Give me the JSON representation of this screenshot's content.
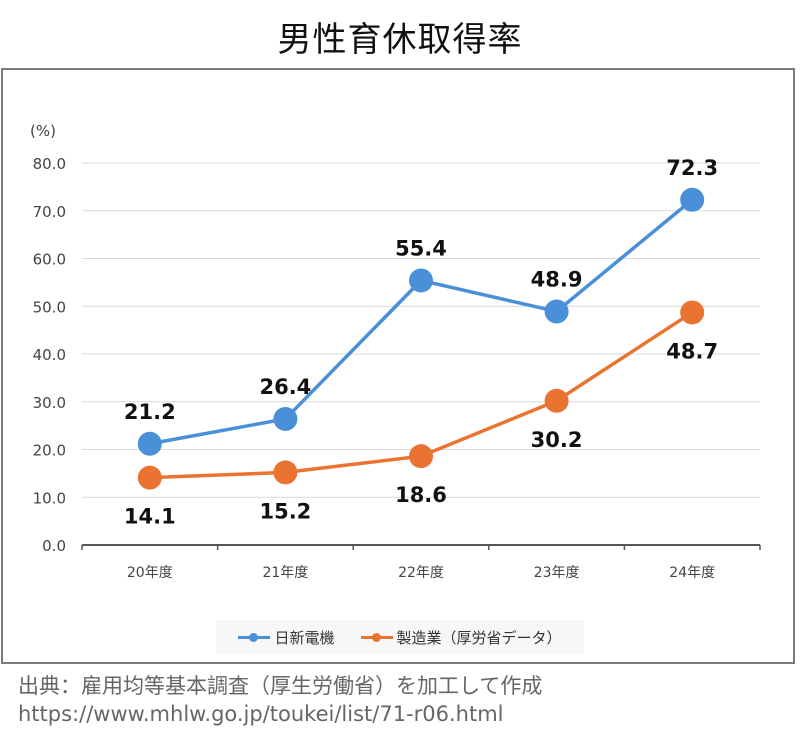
{
  "header": {
    "title": "男性育休取得率"
  },
  "chart_data": {
    "type": "line",
    "title": "男性育休取得率",
    "xlabel": "",
    "ylabel": "(%)",
    "categories": [
      "20年度",
      "21年度",
      "22年度",
      "23年度",
      "24年度"
    ],
    "ylim": [
      0,
      80
    ],
    "yticks": [
      "0.0",
      "10.0",
      "20.0",
      "30.0",
      "40.0",
      "50.0",
      "60.0",
      "70.0",
      "80.0"
    ],
    "grid": true,
    "legend_position": "bottom",
    "series": [
      {
        "name": "日新電機",
        "color": "#4a90d9",
        "values": [
          21.2,
          26.4,
          55.4,
          48.9,
          72.3
        ],
        "labels": [
          "21.2",
          "26.4",
          "55.4",
          "48.9",
          "72.3"
        ],
        "label_pos": [
          "above",
          "above",
          "above",
          "above",
          "above"
        ]
      },
      {
        "name": "製造業（厚労省データ）",
        "color": "#ea7332",
        "values": [
          14.1,
          15.2,
          18.6,
          30.2,
          48.7
        ],
        "labels": [
          "14.1",
          "15.2",
          "18.6",
          "30.2",
          "48.7"
        ],
        "label_pos": [
          "below",
          "below",
          "below",
          "below",
          "below"
        ]
      }
    ]
  },
  "source": {
    "line1": "出典：雇用均等基本調査（厚生労働省）を加工して作成",
    "line2": "https://www.mhlw.go.jp/toukei/list/71-r06.html"
  }
}
